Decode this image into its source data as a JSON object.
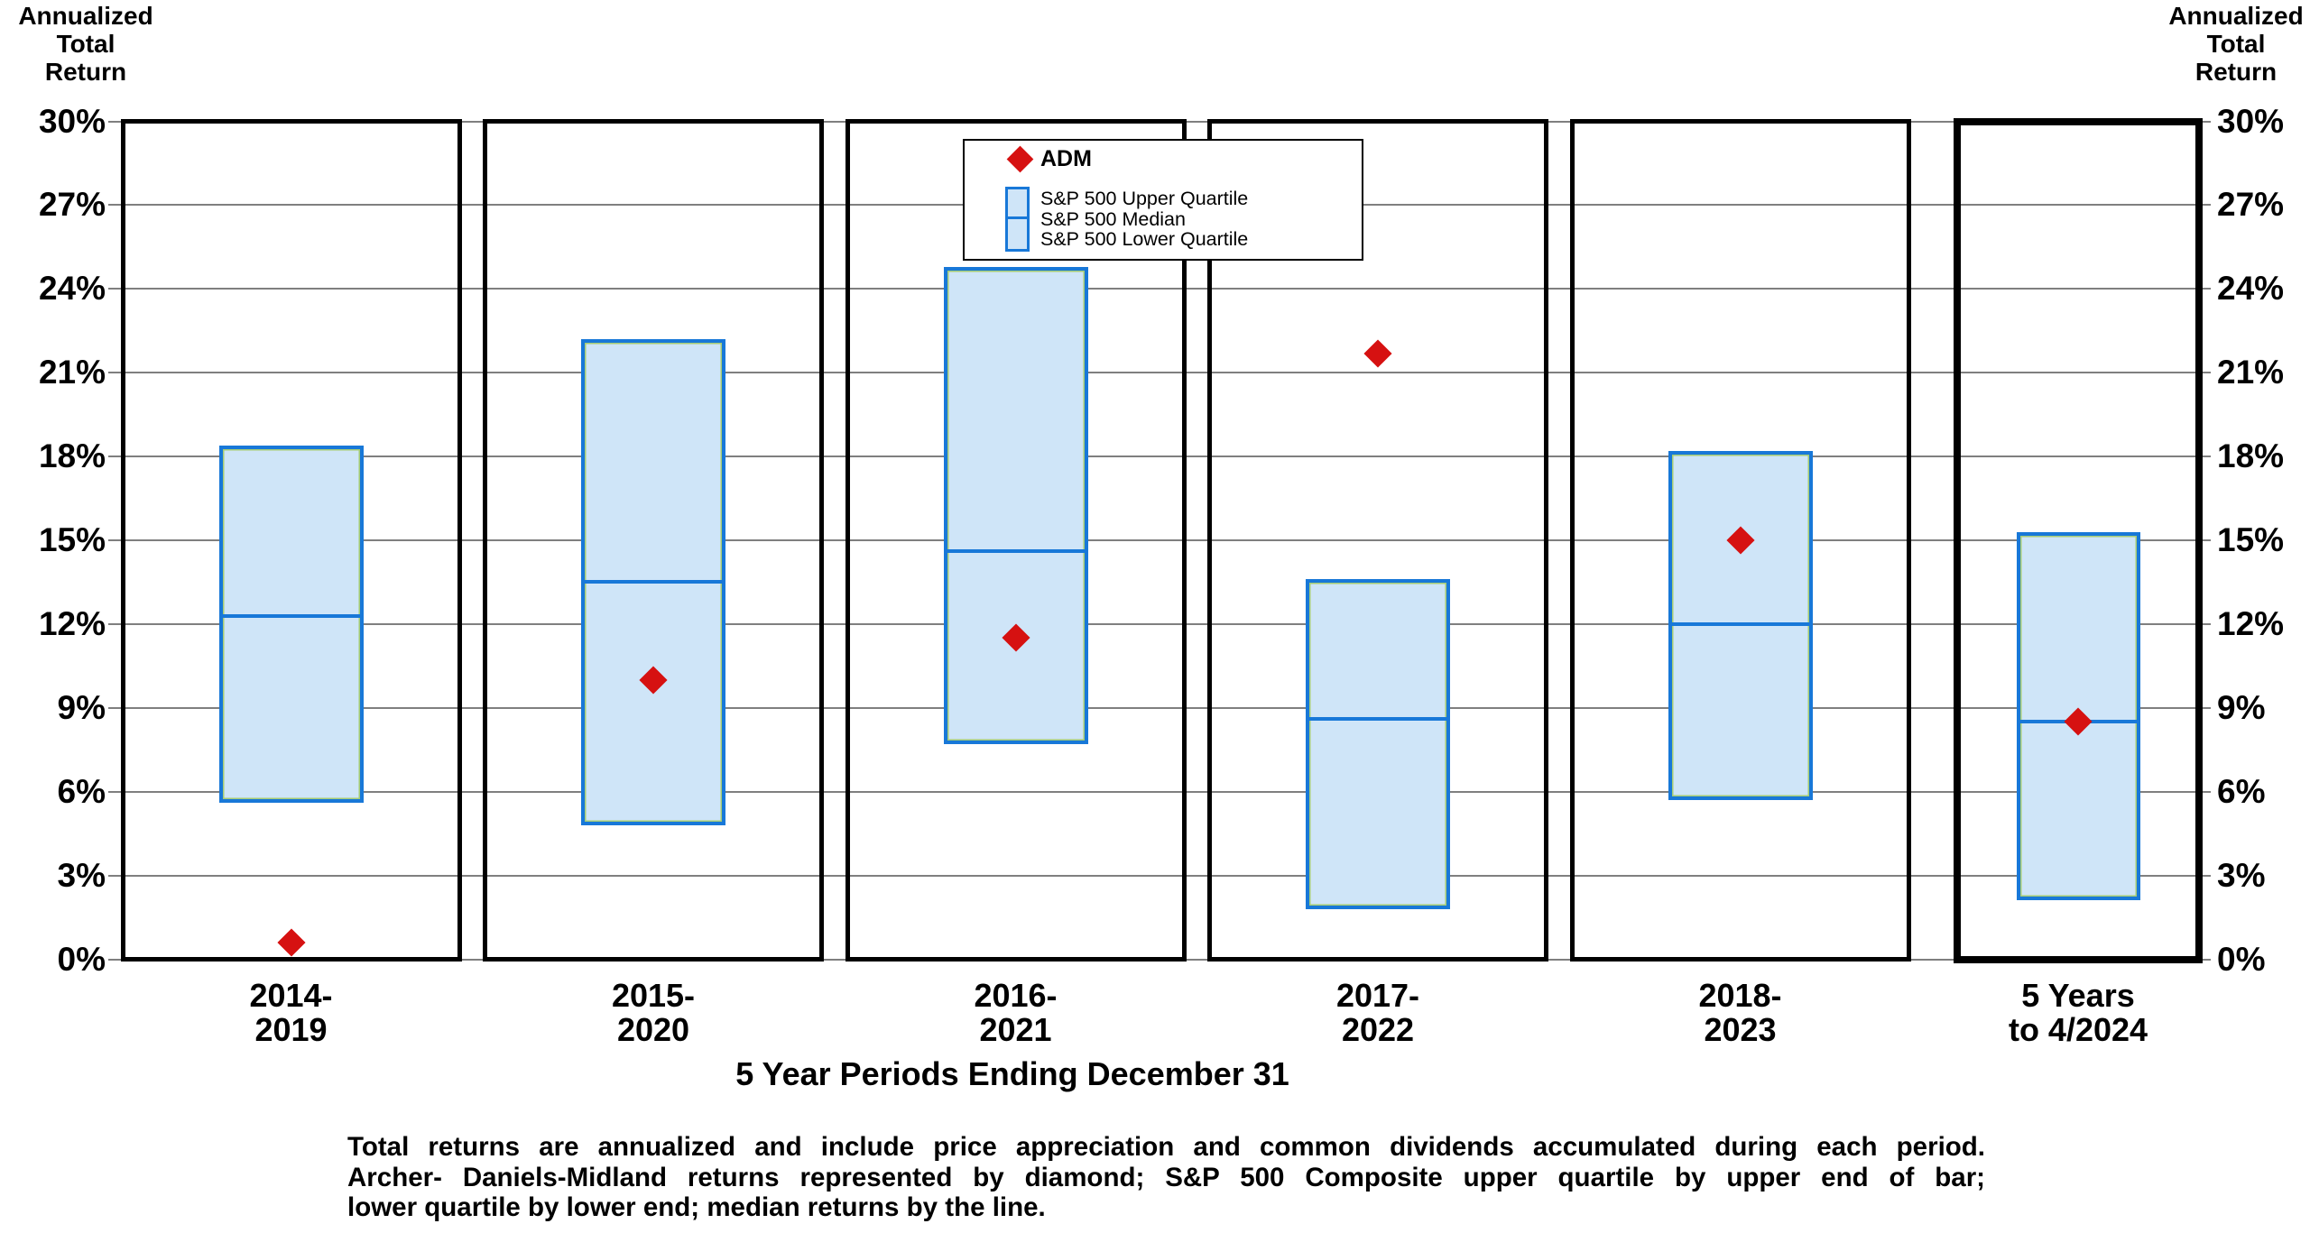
{
  "y_axis_title": "Annualized\nTotal\nReturn",
  "x_axis_title": "5 Year Periods Ending December 31",
  "legend": {
    "adm_label": "ADM",
    "items": [
      "S&P 500 Upper Quartile",
      "S&P 500 Median",
      "S&P 500 Lower Quartile"
    ]
  },
  "footnote_lines": [
    "Total returns are annualized and include price appreciation and common dividends accumulated during each period.",
    "Archer- Daniels-Midland returns represented by diamond; S&P 500 Composite upper quartile by upper end of bar;",
    "lower quartile by lower end; median returns by the line."
  ],
  "chart_data": {
    "type": "bar",
    "subtype": "floating-quartile-bars-with-diamond-markers",
    "title": "",
    "xlabel": "5 Year Periods Ending December 31",
    "ylabel": "Annualized Total Return",
    "y_axis": {
      "min": 0,
      "max": 30,
      "tick_step": 3,
      "unit": "%",
      "gridlines": true,
      "labels_both_sides": true
    },
    "categories": [
      "2014-\n2019",
      "2015-\n2020",
      "2016-\n2021",
      "2017-\n2022",
      "2018-\n2023",
      "5 Years\nto  4/2024"
    ],
    "series": [
      {
        "name": "ADM",
        "marker": "diamond",
        "values": [
          0.6,
          10.0,
          11.5,
          21.7,
          15.0,
          8.5
        ]
      },
      {
        "name": "S&P 500 Upper Quartile",
        "role": "bar-top",
        "values": [
          18.4,
          22.2,
          24.8,
          13.6,
          18.2,
          15.3
        ]
      },
      {
        "name": "S&P 500 Median",
        "role": "bar-median-line",
        "values": [
          12.3,
          13.5,
          14.6,
          8.6,
          12.0,
          8.5
        ]
      },
      {
        "name": "S&P 500 Lower Quartile",
        "role": "bar-bottom",
        "values": [
          5.6,
          4.8,
          7.7,
          1.8,
          5.7,
          2.1
        ]
      }
    ],
    "last_period_highlighted": true,
    "legend_position": "top-center"
  },
  "colors": {
    "bar_fill": "#cfe5f8",
    "bar_border": "#1878d8",
    "bar_inner_line": "#a6cc74",
    "adm_diamond": "#d61111",
    "gridline": "#7f7f7f",
    "panel_border": "#000000",
    "background": "#ffffff"
  }
}
